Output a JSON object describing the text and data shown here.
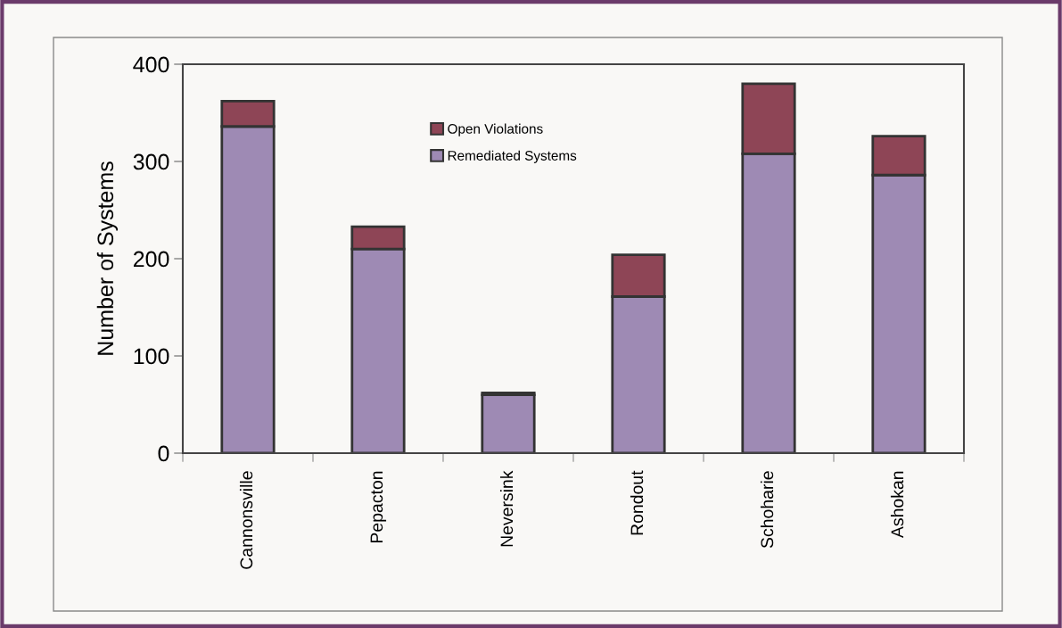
{
  "chart_data": {
    "type": "bar",
    "stacked": true,
    "ylabel": "Number of Systems",
    "categories": [
      "Cannonsville",
      "Pepacton",
      "Neversink",
      "Rondout",
      "Schoharie",
      "Ashokan"
    ],
    "series": [
      {
        "name": "Remediated Systems",
        "color": "#9e8ab4",
        "values": [
          336,
          210,
          60,
          161,
          308,
          286
        ]
      },
      {
        "name": "Open Violations",
        "color": "#8e4556",
        "values": [
          26,
          23,
          2,
          43,
          72,
          40
        ]
      }
    ],
    "ylim": [
      0,
      400
    ],
    "yticks": [
      0,
      100,
      200,
      300,
      400
    ],
    "grid": false,
    "legend": "top"
  }
}
